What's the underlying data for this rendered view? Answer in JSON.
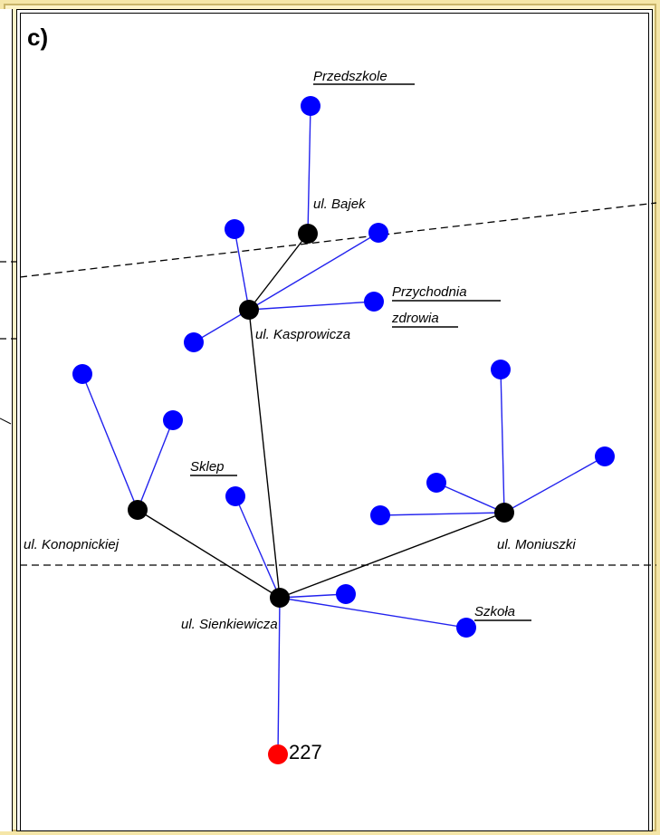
{
  "panel_label": "c)",
  "colors": {
    "street_node": "#000000",
    "facility_node": "#0000ff",
    "origin_node": "#ff0000",
    "street_edge": "#000000",
    "facility_edge": "#2222ee",
    "background": "#f5e6a8"
  },
  "labels": {
    "przedszkole": "Przedszkole",
    "ul_bajek": "ul. Bajek",
    "przychodnia_line1": "Przychodnia",
    "przychodnia_line2": "zdrowia",
    "ul_kasprowicza": "ul. Kasprowicza",
    "sklep": "Sklep",
    "ul_konopnickiej": "ul. Konopnickiej",
    "ul_moniuszki": "ul. Moniuszki",
    "ul_sienkiewicza": "ul. Sienkiewicza",
    "szkola": "Szkoła",
    "origin_number": "227"
  }
}
